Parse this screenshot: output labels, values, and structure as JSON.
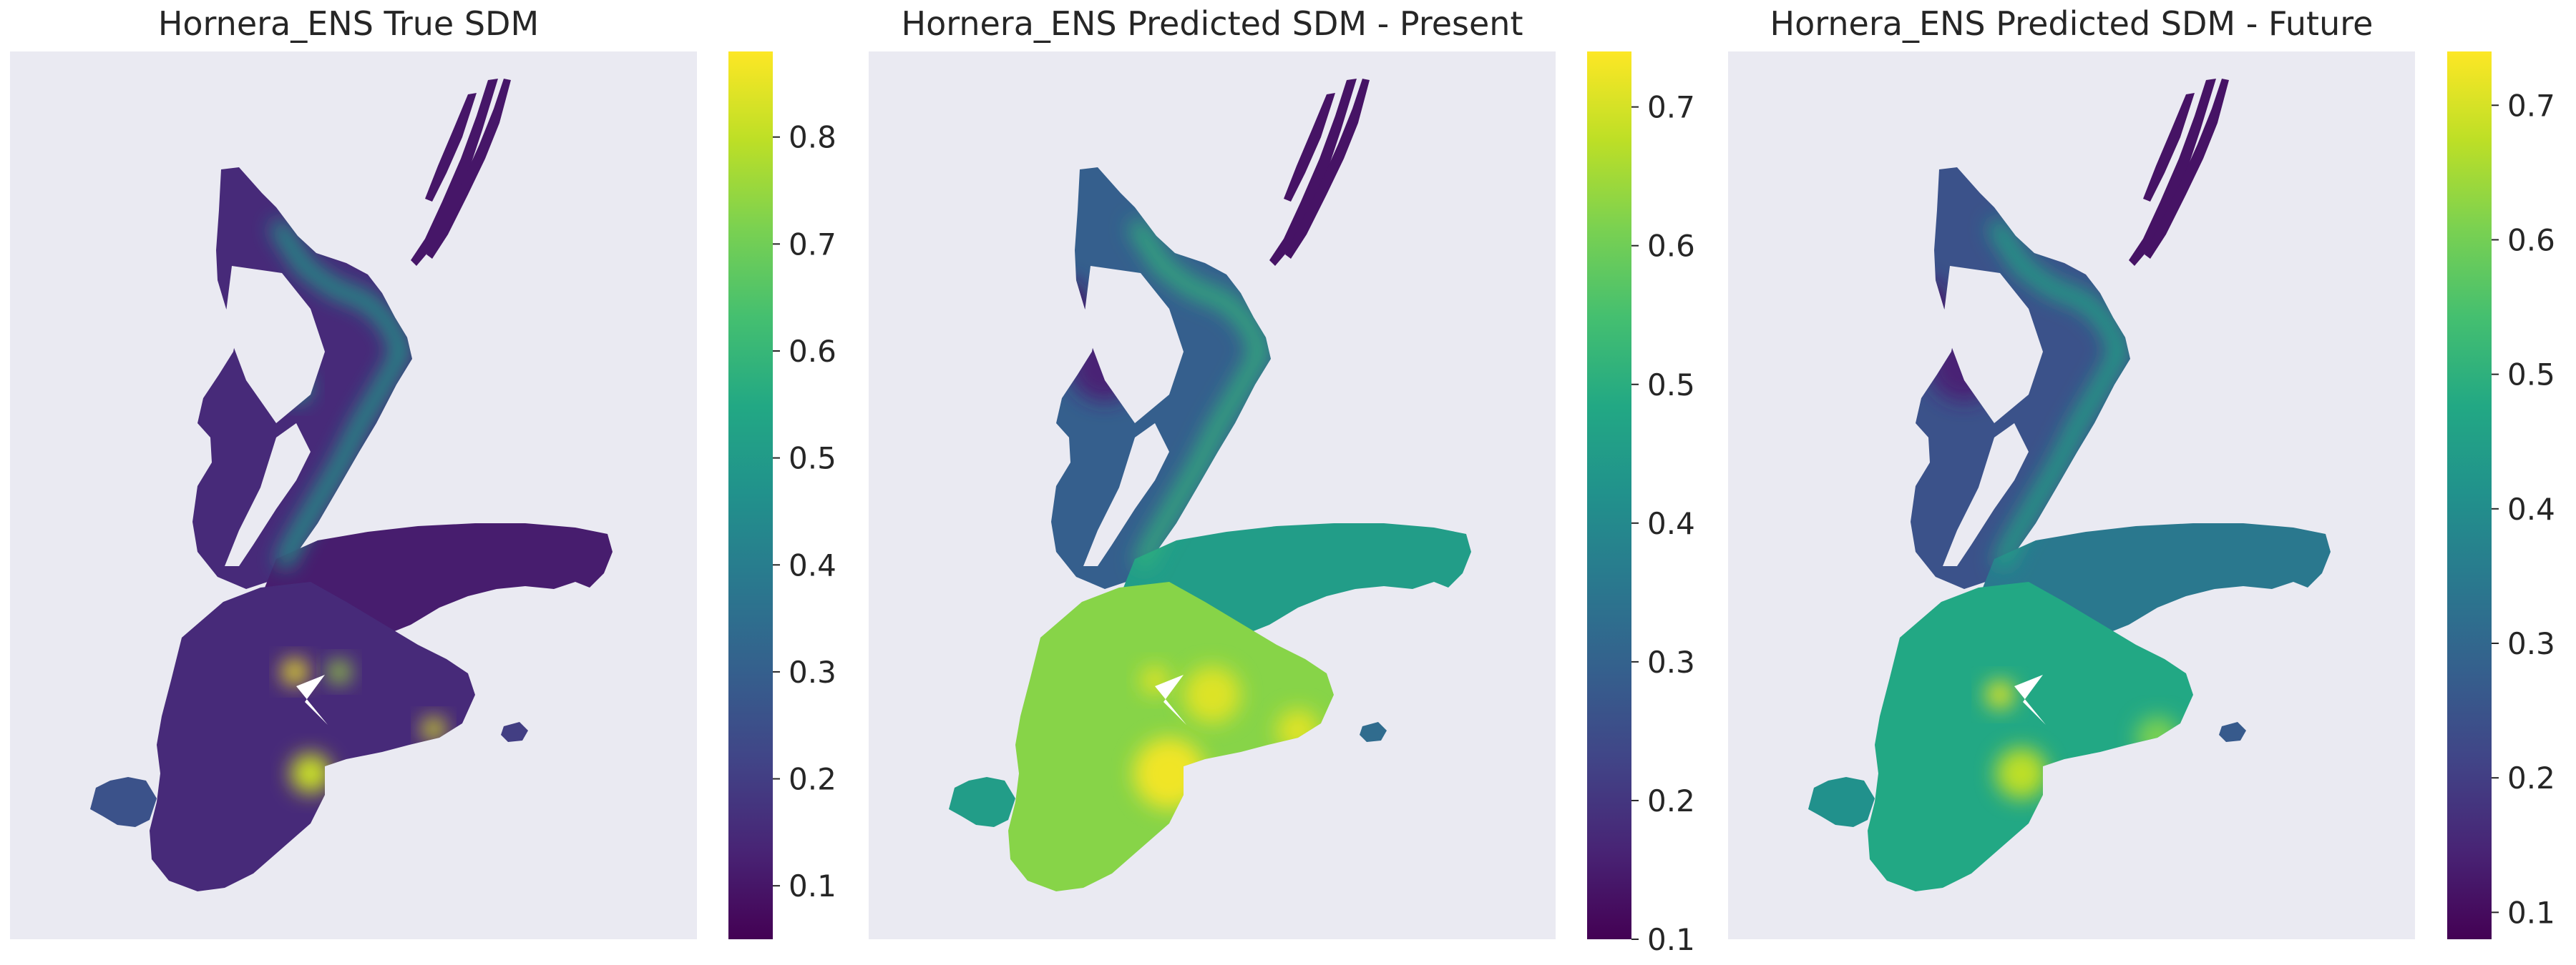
{
  "chart_data": [
    {
      "type": "heatmap",
      "title": "Hornera_ENS True SDM",
      "colormap": "viridis",
      "background": "#eaeaf2",
      "colorbar": {
        "vmin": 0.05,
        "vmax": 0.88,
        "ticks": [
          0.1,
          0.2,
          0.3,
          0.4,
          0.5,
          0.6,
          0.7,
          0.8
        ]
      },
      "value_pattern": "mostly low (dark purple) interior with bright green/yellow coastal hotspots"
    },
    {
      "type": "heatmap",
      "title": "Hornera_ENS Predicted SDM - Present",
      "colormap": "viridis",
      "background": "#eaeaf2",
      "colorbar": {
        "vmin": 0.1,
        "vmax": 0.74,
        "ticks": [
          0.1,
          0.2,
          0.3,
          0.4,
          0.5,
          0.6,
          0.7
        ]
      },
      "value_pattern": "low in north, high (yellow-green) across southern plateau"
    },
    {
      "type": "heatmap",
      "title": "Hornera_ENS Predicted SDM - Future",
      "colormap": "viridis",
      "background": "#eaeaf2",
      "colorbar": {
        "vmin": 0.08,
        "vmax": 0.74,
        "ticks": [
          0.1,
          0.2,
          0.3,
          0.4,
          0.5,
          0.6,
          0.7
        ]
      },
      "value_pattern": "moderate teal-green across southern plateau, lower than present"
    }
  ]
}
